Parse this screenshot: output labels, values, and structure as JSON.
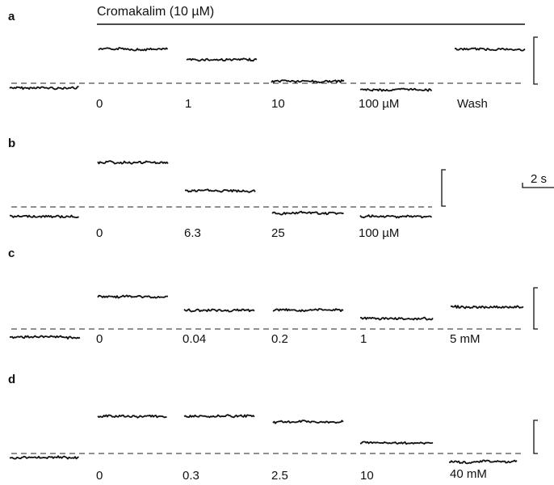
{
  "figure": {
    "title": "Cromakalim (10 µM)",
    "time_scale_label": "2 s",
    "panels": [
      {
        "letter": "a",
        "labels": [
          "0",
          "1",
          "10",
          "100 µM",
          "Wash"
        ]
      },
      {
        "letter": "b",
        "labels": [
          "0",
          "6.3",
          "25",
          "100 µM"
        ]
      },
      {
        "letter": "c",
        "labels": [
          "0",
          "0.04",
          "0.2",
          "1",
          "5 mM"
        ]
      },
      {
        "letter": "d",
        "labels": [
          "0",
          "0.3",
          "2.5",
          "10",
          "40 mM"
        ]
      }
    ]
  }
}
